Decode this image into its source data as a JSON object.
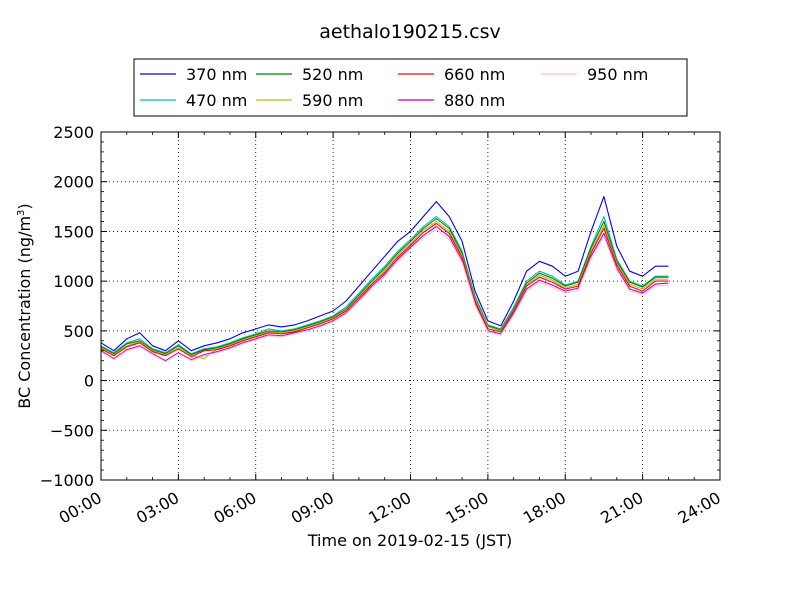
{
  "chart_data": {
    "type": "line",
    "title": "aethalo190215.csv",
    "xlabel": "Time on 2019-02-15 (JST)",
    "ylabel_main": "BC Concentration (ng/m",
    "ylabel_sup": "3",
    "ylabel_end": ")",
    "xlim_hours": [
      0,
      24
    ],
    "ylim": [
      -1000,
      2500
    ],
    "grid": true,
    "legend_position": "top-center",
    "x_ticks": [
      {
        "hour": 0,
        "label": "00:00"
      },
      {
        "hour": 3,
        "label": "03:00"
      },
      {
        "hour": 6,
        "label": "06:00"
      },
      {
        "hour": 9,
        "label": "09:00"
      },
      {
        "hour": 12,
        "label": "12:00"
      },
      {
        "hour": 15,
        "label": "15:00"
      },
      {
        "hour": 18,
        "label": "18:00"
      },
      {
        "hour": 21,
        "label": "21:00"
      },
      {
        "hour": 24,
        "label": "24:00"
      }
    ],
    "y_ticks": [
      {
        "value": 2500,
        "label": "2500"
      },
      {
        "value": 2000,
        "label": "2000"
      },
      {
        "value": 1500,
        "label": "1500"
      },
      {
        "value": 1000,
        "label": "1000"
      },
      {
        "value": 500,
        "label": "500"
      },
      {
        "value": 0,
        "label": "0"
      },
      {
        "value": -500,
        "label": "−500"
      },
      {
        "value": -1000,
        "label": "−1000"
      }
    ],
    "x_hours": [
      0.0,
      0.5,
      1.0,
      1.5,
      2.0,
      2.5,
      3.0,
      3.5,
      4.0,
      4.5,
      5.0,
      5.5,
      6.0,
      6.5,
      7.0,
      7.5,
      8.0,
      8.5,
      9.0,
      9.5,
      10.0,
      10.5,
      11.0,
      11.5,
      12.0,
      12.5,
      13.0,
      13.5,
      14.0,
      14.5,
      15.0,
      15.5,
      16.0,
      16.5,
      17.0,
      17.5,
      18.0,
      18.5,
      19.0,
      19.5,
      20.0,
      20.5,
      21.0,
      21.5,
      22.0
    ],
    "series": [
      {
        "name": "370 nm",
        "color": "#0000ff",
        "values": [
          380,
          300,
          420,
          480,
          350,
          300,
          400,
          300,
          350,
          380,
          420,
          480,
          520,
          560,
          540,
          560,
          600,
          650,
          700,
          800,
          950,
          1100,
          1250,
          1400,
          1500,
          1650,
          1800,
          1650,
          1400,
          900,
          600,
          550,
          800,
          1100,
          1200,
          1150,
          1050,
          1100,
          1500,
          1850,
          1350,
          1100,
          1050,
          1150,
          1150
        ]
      },
      {
        "name": "470 nm",
        "color": "#00bfbf",
        "values": [
          350,
          280,
          380,
          420,
          320,
          280,
          360,
          270,
          320,
          340,
          380,
          430,
          470,
          520,
          500,
          520,
          560,
          600,
          650,
          740,
          880,
          1020,
          1150,
          1300,
          1420,
          1550,
          1650,
          1550,
          1300,
          850,
          560,
          520,
          740,
          1000,
          1100,
          1050,
          960,
          1000,
          1350,
          1650,
          1220,
          1000,
          950,
          1050,
          1050
        ]
      },
      {
        "name": "520 nm",
        "color": "#008000",
        "values": [
          340,
          270,
          370,
          400,
          310,
          270,
          350,
          260,
          310,
          330,
          370,
          420,
          460,
          500,
          490,
          510,
          550,
          590,
          640,
          720,
          860,
          1000,
          1130,
          1280,
          1400,
          1530,
          1630,
          1530,
          1280,
          830,
          550,
          510,
          720,
          980,
          1080,
          1030,
          950,
          990,
          1330,
          1600,
          1200,
          990,
          940,
          1040,
          1040
        ]
      },
      {
        "name": "590 nm",
        "color": "#bfbf00",
        "values": [
          330,
          260,
          350,
          390,
          300,
          260,
          330,
          250,
          220,
          320,
          360,
          410,
          450,
          490,
          480,
          500,
          540,
          580,
          630,
          710,
          840,
          990,
          1110,
          1260,
          1380,
          1510,
          1600,
          1500,
          1260,
          820,
          540,
          500,
          710,
          960,
          1060,
          1010,
          930,
          970,
          1300,
          1560,
          1180,
          970,
          920,
          1020,
          1020
        ]
      },
      {
        "name": "660 nm",
        "color": "#ff0000",
        "values": [
          320,
          250,
          340,
          380,
          290,
          250,
          320,
          240,
          300,
          310,
          350,
          400,
          440,
          480,
          470,
          490,
          530,
          570,
          620,
          700,
          830,
          970,
          1090,
          1240,
          1360,
          1490,
          1580,
          1480,
          1240,
          800,
          520,
          490,
          700,
          950,
          1040,
          990,
          920,
          950,
          1280,
          1530,
          1160,
          950,
          900,
          1000,
          1000
        ]
      },
      {
        "name": "880 nm",
        "color": "#bf00bf",
        "values": [
          300,
          220,
          310,
          350,
          270,
          200,
          280,
          210,
          260,
          290,
          330,
          380,
          420,
          460,
          450,
          480,
          510,
          550,
          600,
          680,
          810,
          950,
          1070,
          1220,
          1340,
          1460,
          1550,
          1450,
          1210,
          780,
          500,
          470,
          680,
          920,
          1010,
          960,
          900,
          930,
          1250,
          1480,
          1130,
          920,
          880,
          970,
          980
        ]
      },
      {
        "name": "950 nm",
        "color": "#ffc0cb",
        "values": [
          290,
          210,
          300,
          340,
          260,
          190,
          270,
          200,
          250,
          280,
          320,
          370,
          410,
          450,
          440,
          470,
          500,
          540,
          590,
          670,
          800,
          930,
          1050,
          1200,
          1320,
          1440,
          1520,
          1420,
          1190,
          760,
          490,
          460,
          660,
          900,
          990,
          940,
          880,
          910,
          1230,
          1450,
          1110,
          900,
          860,
          950,
          960
        ]
      }
    ]
  }
}
